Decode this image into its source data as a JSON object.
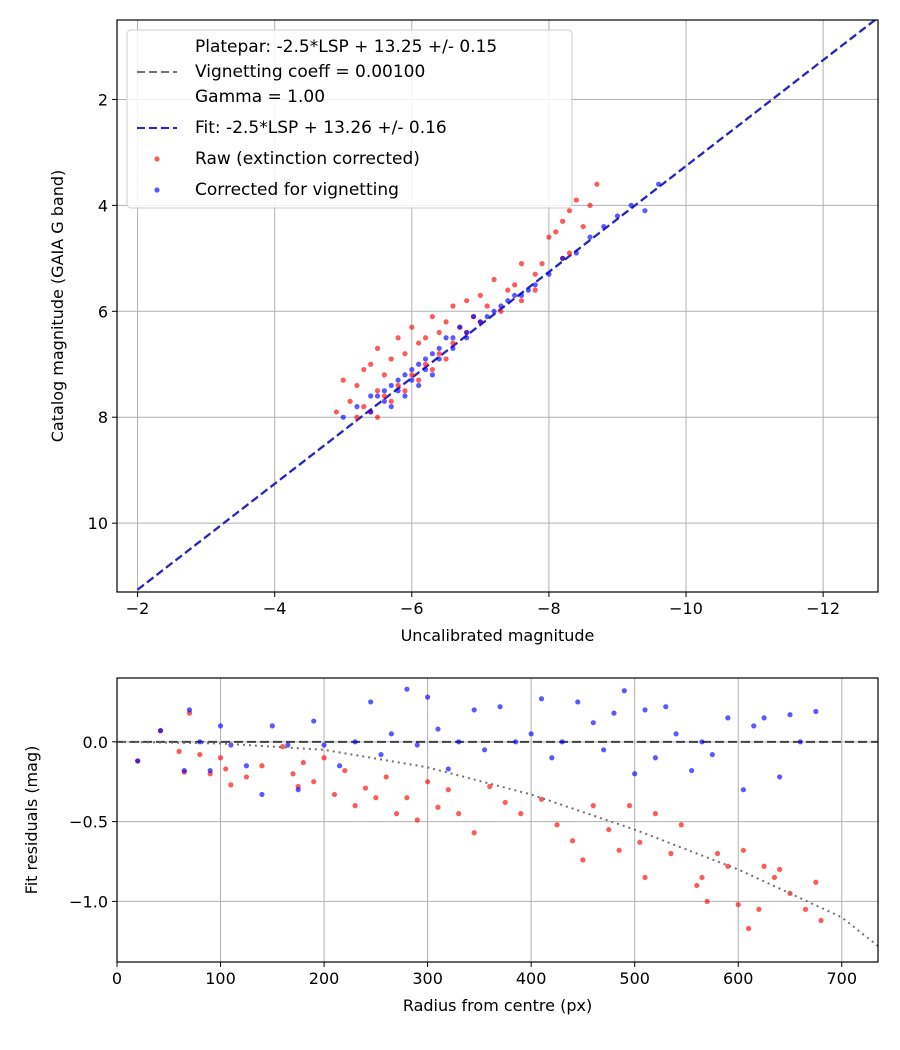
{
  "colors": {
    "raw": "#ff0000",
    "corrected": "#0000ff",
    "fit_line": "#2222cc",
    "platepar_line": "#707070",
    "model_curve": "#707070",
    "zero_line": "#404040",
    "grid": "#b0b0b0"
  },
  "chart_data": [
    {
      "type": "scatter",
      "xlabel": "Uncalibrated magnitude",
      "ylabel": "Catalog magnitude (GAIA G band)",
      "xlim": [
        -1.7,
        -12.8
      ],
      "ylim": [
        11.3,
        0.5
      ],
      "x_inverted": true,
      "y_inverted": true,
      "xticks": [
        -2,
        -4,
        -6,
        -8,
        -10,
        -12
      ],
      "xtick_labels": [
        "−2",
        "−4",
        "−6",
        "−8",
        "−10",
        "−12"
      ],
      "yticks": [
        2,
        4,
        6,
        8,
        10
      ],
      "ytick_labels": [
        "2",
        "4",
        "6",
        "8",
        "10"
      ],
      "grid": true,
      "legend_position": "upper-left",
      "legend": [
        {
          "kind": "line",
          "style": "dashed",
          "color_key": "platepar_line",
          "lines": [
            "Platepar: -2.5*LSP + 13.25 +/- 0.15",
            "Vignetting coeff = 0.00100",
            "Gamma = 1.00"
          ]
        },
        {
          "kind": "line",
          "style": "dashed",
          "color_key": "fit_line",
          "lines": [
            "Fit: -2.5*LSP + 13.26 +/- 0.16"
          ]
        },
        {
          "kind": "marker",
          "color_key": "raw",
          "lines": [
            "Raw (extinction corrected)"
          ]
        },
        {
          "kind": "marker",
          "color_key": "corrected",
          "lines": [
            "Corrected for vignetting"
          ]
        }
      ],
      "lines": [
        {
          "name": "Platepar: -2.5*LSP + 13.25 +/- 0.15",
          "x": [
            -2,
            -13
          ],
          "y": [
            11.25,
            0.25
          ],
          "color_key": "platepar_line",
          "style": "dashed"
        },
        {
          "name": "Fit: -2.5*LSP + 13.26 +/- 0.16",
          "x": [
            -2,
            -13
          ],
          "y": [
            11.26,
            0.26
          ],
          "color_key": "fit_line",
          "style": "dashed"
        }
      ],
      "series": [
        {
          "name": "Raw (extinction corrected)",
          "color_key": "raw",
          "points": [
            [
              -8.7,
              3.6
            ],
            [
              -8.6,
              4.0
            ],
            [
              -8.4,
              3.9
            ],
            [
              -8.3,
              4.1
            ],
            [
              -8.2,
              4.3
            ],
            [
              -8.5,
              4.4
            ],
            [
              -8.1,
              4.5
            ],
            [
              -8.0,
              4.6
            ],
            [
              -8.3,
              4.9
            ],
            [
              -8.2,
              5.0
            ],
            [
              -7.9,
              5.1
            ],
            [
              -7.8,
              5.3
            ],
            [
              -7.6,
              5.1
            ],
            [
              -7.5,
              5.5
            ],
            [
              -7.4,
              5.6
            ],
            [
              -7.2,
              5.4
            ],
            [
              -7.0,
              5.7
            ],
            [
              -7.1,
              5.9
            ],
            [
              -6.8,
              5.8
            ],
            [
              -6.9,
              6.1
            ],
            [
              -6.6,
              5.9
            ],
            [
              -6.5,
              6.2
            ],
            [
              -6.7,
              6.3
            ],
            [
              -6.4,
              6.4
            ],
            [
              -6.3,
              6.1
            ],
            [
              -6.2,
              6.5
            ],
            [
              -6.0,
              6.3
            ],
            [
              -6.1,
              6.6
            ],
            [
              -5.9,
              6.8
            ],
            [
              -5.8,
              6.5
            ],
            [
              -5.7,
              6.9
            ],
            [
              -5.5,
              6.7
            ],
            [
              -5.4,
              7.0
            ],
            [
              -5.6,
              7.2
            ],
            [
              -5.3,
              7.1
            ],
            [
              -5.2,
              7.4
            ],
            [
              -5.5,
              7.5
            ],
            [
              -5.0,
              7.3
            ],
            [
              -5.1,
              7.7
            ],
            [
              -4.9,
              7.9
            ],
            [
              -5.3,
              7.8
            ],
            [
              -5.6,
              7.6
            ],
            [
              -5.8,
              7.4
            ],
            [
              -6.0,
              7.2
            ],
            [
              -6.2,
              7.0
            ],
            [
              -6.4,
              6.8
            ],
            [
              -6.6,
              6.6
            ],
            [
              -6.8,
              6.4
            ],
            [
              -7.0,
              6.2
            ],
            [
              -7.3,
              6.0
            ],
            [
              -7.6,
              5.8
            ],
            [
              -7.8,
              5.6
            ],
            [
              -5.4,
              7.9
            ],
            [
              -5.7,
              7.7
            ],
            [
              -5.9,
              7.5
            ],
            [
              -6.1,
              7.3
            ],
            [
              -6.3,
              7.1
            ],
            [
              -6.5,
              6.9
            ],
            [
              -5.2,
              8.0
            ],
            [
              -5.5,
              8.0
            ]
          ]
        },
        {
          "name": "Corrected for vignetting",
          "color_key": "corrected",
          "points": [
            [
              -9.6,
              3.6
            ],
            [
              -9.4,
              4.1
            ],
            [
              -9.2,
              4.0
            ],
            [
              -9.0,
              4.2
            ],
            [
              -8.8,
              4.4
            ],
            [
              -8.6,
              4.6
            ],
            [
              -8.4,
              4.9
            ],
            [
              -8.2,
              5.0
            ],
            [
              -8.0,
              5.3
            ],
            [
              -7.8,
              5.5
            ],
            [
              -7.6,
              5.7
            ],
            [
              -7.4,
              5.8
            ],
            [
              -7.2,
              6.0
            ],
            [
              -7.0,
              6.2
            ],
            [
              -6.8,
              6.4
            ],
            [
              -6.6,
              6.5
            ],
            [
              -6.4,
              6.7
            ],
            [
              -6.2,
              6.9
            ],
            [
              -6.0,
              7.1
            ],
            [
              -5.8,
              7.3
            ],
            [
              -5.6,
              7.5
            ],
            [
              -5.4,
              7.6
            ],
            [
              -5.2,
              7.8
            ],
            [
              -5.0,
              8.0
            ],
            [
              -6.5,
              6.5
            ],
            [
              -6.3,
              6.8
            ],
            [
              -6.1,
              7.0
            ],
            [
              -5.9,
              7.2
            ],
            [
              -5.7,
              7.4
            ],
            [
              -5.5,
              7.6
            ],
            [
              -6.7,
              6.3
            ],
            [
              -6.9,
              6.1
            ],
            [
              -7.1,
              6.1
            ],
            [
              -6.4,
              6.9
            ],
            [
              -6.2,
              7.1
            ],
            [
              -6.0,
              7.3
            ],
            [
              -5.8,
              7.5
            ],
            [
              -5.6,
              7.7
            ],
            [
              -5.4,
              7.9
            ],
            [
              -6.6,
              6.7
            ],
            [
              -6.8,
              6.5
            ],
            [
              -7.3,
              5.9
            ],
            [
              -7.5,
              5.7
            ],
            [
              -7.7,
              5.6
            ],
            [
              -6.3,
              7.2
            ],
            [
              -6.1,
              7.4
            ],
            [
              -5.9,
              7.6
            ],
            [
              -5.7,
              7.8
            ]
          ]
        }
      ]
    },
    {
      "type": "scatter",
      "xlabel": "Radius from centre (px)",
      "ylabel": "Fit residuals (mag)",
      "xlim": [
        0,
        735
      ],
      "ylim": [
        -1.38,
        0.4
      ],
      "xticks": [
        0,
        100,
        200,
        300,
        400,
        500,
        600,
        700
      ],
      "xtick_labels": [
        "0",
        "100",
        "200",
        "300",
        "400",
        "500",
        "600",
        "700"
      ],
      "yticks": [
        0.0,
        -0.5,
        -1.0
      ],
      "ytick_labels": [
        "0.0",
        "−0.5",
        "−1.0"
      ],
      "grid": true,
      "zero_line": {
        "y": 0.0,
        "color_key": "zero_line",
        "style": "dashed"
      },
      "model_curve": {
        "color_key": "model_curve",
        "style": "dotted",
        "x": [
          0,
          100,
          200,
          300,
          400,
          500,
          600,
          700,
          735
        ],
        "y": [
          0.0,
          -0.01,
          -0.05,
          -0.16,
          -0.33,
          -0.55,
          -0.8,
          -1.1,
          -1.28
        ]
      },
      "series": [
        {
          "name": "Raw (extinction corrected)",
          "color_key": "raw",
          "points": [
            [
              20,
              -0.12
            ],
            [
              42,
              0.07
            ],
            [
              60,
              -0.06
            ],
            [
              65,
              -0.19
            ],
            [
              70,
              0.18
            ],
            [
              80,
              -0.08
            ],
            [
              90,
              -0.2
            ],
            [
              100,
              -0.1
            ],
            [
              105,
              -0.17
            ],
            [
              110,
              -0.27
            ],
            [
              125,
              -0.22
            ],
            [
              140,
              -0.15
            ],
            [
              160,
              -0.03
            ],
            [
              170,
              -0.2
            ],
            [
              175,
              -0.28
            ],
            [
              180,
              -0.13
            ],
            [
              190,
              -0.25
            ],
            [
              200,
              -0.1
            ],
            [
              210,
              -0.33
            ],
            [
              220,
              -0.18
            ],
            [
              230,
              -0.4
            ],
            [
              240,
              -0.29
            ],
            [
              250,
              -0.35
            ],
            [
              260,
              -0.22
            ],
            [
              270,
              -0.45
            ],
            [
              280,
              -0.35
            ],
            [
              290,
              -0.49
            ],
            [
              300,
              -0.25
            ],
            [
              310,
              -0.41
            ],
            [
              320,
              -0.3
            ],
            [
              330,
              -0.45
            ],
            [
              345,
              -0.57
            ],
            [
              360,
              -0.28
            ],
            [
              375,
              -0.38
            ],
            [
              390,
              -0.45
            ],
            [
              410,
              -0.36
            ],
            [
              425,
              -0.52
            ],
            [
              440,
              -0.62
            ],
            [
              450,
              -0.74
            ],
            [
              460,
              -0.4
            ],
            [
              475,
              -0.55
            ],
            [
              485,
              -0.68
            ],
            [
              495,
              -0.4
            ],
            [
              505,
              -0.63
            ],
            [
              510,
              -0.85
            ],
            [
              520,
              -0.45
            ],
            [
              535,
              -0.7
            ],
            [
              545,
              -0.52
            ],
            [
              560,
              -0.9
            ],
            [
              565,
              -0.85
            ],
            [
              570,
              -1.0
            ],
            [
              580,
              -0.7
            ],
            [
              590,
              -0.78
            ],
            [
              600,
              -1.02
            ],
            [
              605,
              -0.68
            ],
            [
              610,
              -1.17
            ],
            [
              620,
              -1.05
            ],
            [
              625,
              -0.78
            ],
            [
              635,
              -0.85
            ],
            [
              640,
              -0.8
            ],
            [
              650,
              -0.95
            ],
            [
              665,
              -1.05
            ],
            [
              675,
              -0.88
            ],
            [
              680,
              -1.12
            ]
          ]
        },
        {
          "name": "Corrected for vignetting",
          "color_key": "corrected",
          "points": [
            [
              20,
              -0.12
            ],
            [
              42,
              0.07
            ],
            [
              65,
              -0.18
            ],
            [
              70,
              0.2
            ],
            [
              80,
              0.0
            ],
            [
              90,
              -0.18
            ],
            [
              100,
              0.1
            ],
            [
              110,
              -0.02
            ],
            [
              125,
              -0.15
            ],
            [
              140,
              -0.33
            ],
            [
              150,
              0.1
            ],
            [
              165,
              -0.02
            ],
            [
              175,
              -0.3
            ],
            [
              190,
              0.13
            ],
            [
              200,
              -0.02
            ],
            [
              215,
              -0.15
            ],
            [
              230,
              0.0
            ],
            [
              245,
              0.25
            ],
            [
              255,
              -0.08
            ],
            [
              265,
              0.05
            ],
            [
              280,
              0.33
            ],
            [
              290,
              -0.02
            ],
            [
              300,
              0.28
            ],
            [
              310,
              0.08
            ],
            [
              320,
              -0.17
            ],
            [
              330,
              0.0
            ],
            [
              345,
              0.2
            ],
            [
              355,
              -0.05
            ],
            [
              370,
              0.22
            ],
            [
              385,
              0.0
            ],
            [
              400,
              0.05
            ],
            [
              410,
              0.27
            ],
            [
              420,
              -0.1
            ],
            [
              430,
              0.0
            ],
            [
              445,
              0.25
            ],
            [
              460,
              0.12
            ],
            [
              470,
              -0.05
            ],
            [
              480,
              0.18
            ],
            [
              490,
              0.32
            ],
            [
              500,
              -0.2
            ],
            [
              510,
              0.2
            ],
            [
              520,
              -0.1
            ],
            [
              530,
              0.22
            ],
            [
              540,
              0.05
            ],
            [
              555,
              -0.18
            ],
            [
              565,
              0.0
            ],
            [
              575,
              -0.08
            ],
            [
              590,
              0.15
            ],
            [
              605,
              -0.3
            ],
            [
              615,
              0.1
            ],
            [
              625,
              0.15
            ],
            [
              640,
              -0.22
            ],
            [
              650,
              0.17
            ],
            [
              660,
              0.0
            ],
            [
              675,
              0.19
            ]
          ]
        }
      ]
    }
  ]
}
